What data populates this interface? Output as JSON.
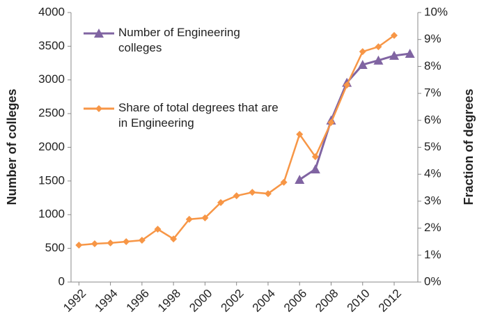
{
  "chart_data": {
    "type": "line",
    "y_label": "Number of colleges",
    "y2_label": "Fraction of degrees",
    "x": [
      1992,
      1993,
      1994,
      1995,
      1996,
      1997,
      1998,
      1999,
      2000,
      2001,
      2002,
      2003,
      2004,
      2005,
      2006,
      2007,
      2008,
      2009,
      2010,
      2011,
      2012,
      2013
    ],
    "xlim": [
      1991.5,
      2013.5
    ],
    "xticks": [
      1992,
      1994,
      1996,
      1998,
      2000,
      2002,
      2004,
      2006,
      2008,
      2010,
      2012
    ],
    "ylim": [
      0,
      4000
    ],
    "yticks": [
      0,
      500,
      1000,
      1500,
      2000,
      2500,
      3000,
      3500,
      4000
    ],
    "y2lim": [
      0,
      10
    ],
    "y2ticks": [
      {
        "value": 0,
        "label": "0%"
      },
      {
        "value": 1,
        "label": "1%"
      },
      {
        "value": 2,
        "label": "2%"
      },
      {
        "value": 3,
        "label": "3%"
      },
      {
        "value": 4,
        "label": "4%"
      },
      {
        "value": 5,
        "label": "5%"
      },
      {
        "value": 6,
        "label": "6%"
      },
      {
        "value": 7,
        "label": "7%"
      },
      {
        "value": 8,
        "label": "8%"
      },
      {
        "value": 9,
        "label": "9%"
      },
      {
        "value": 10,
        "label": "10%"
      }
    ],
    "grid": false,
    "legend": "upper left",
    "series": [
      {
        "name": "Number of Engineering colleges",
        "color": "#8064a2",
        "marker": "triangle",
        "axis": "y",
        "values": [
          null,
          null,
          null,
          null,
          null,
          null,
          null,
          null,
          null,
          null,
          null,
          null,
          null,
          null,
          1520,
          1675,
          2400,
          2960,
          3225,
          3290,
          3360,
          3390
        ]
      },
      {
        "name": "Share of total degrees that are in Engineering",
        "color": "#f79646",
        "marker": "diamond",
        "axis": "y2",
        "values": [
          1.37,
          1.42,
          1.45,
          1.5,
          1.55,
          1.96,
          1.6,
          2.33,
          2.38,
          2.95,
          3.2,
          3.33,
          3.28,
          3.7,
          5.48,
          4.65,
          5.92,
          7.31,
          8.55,
          8.73,
          9.15,
          null
        ]
      }
    ]
  }
}
